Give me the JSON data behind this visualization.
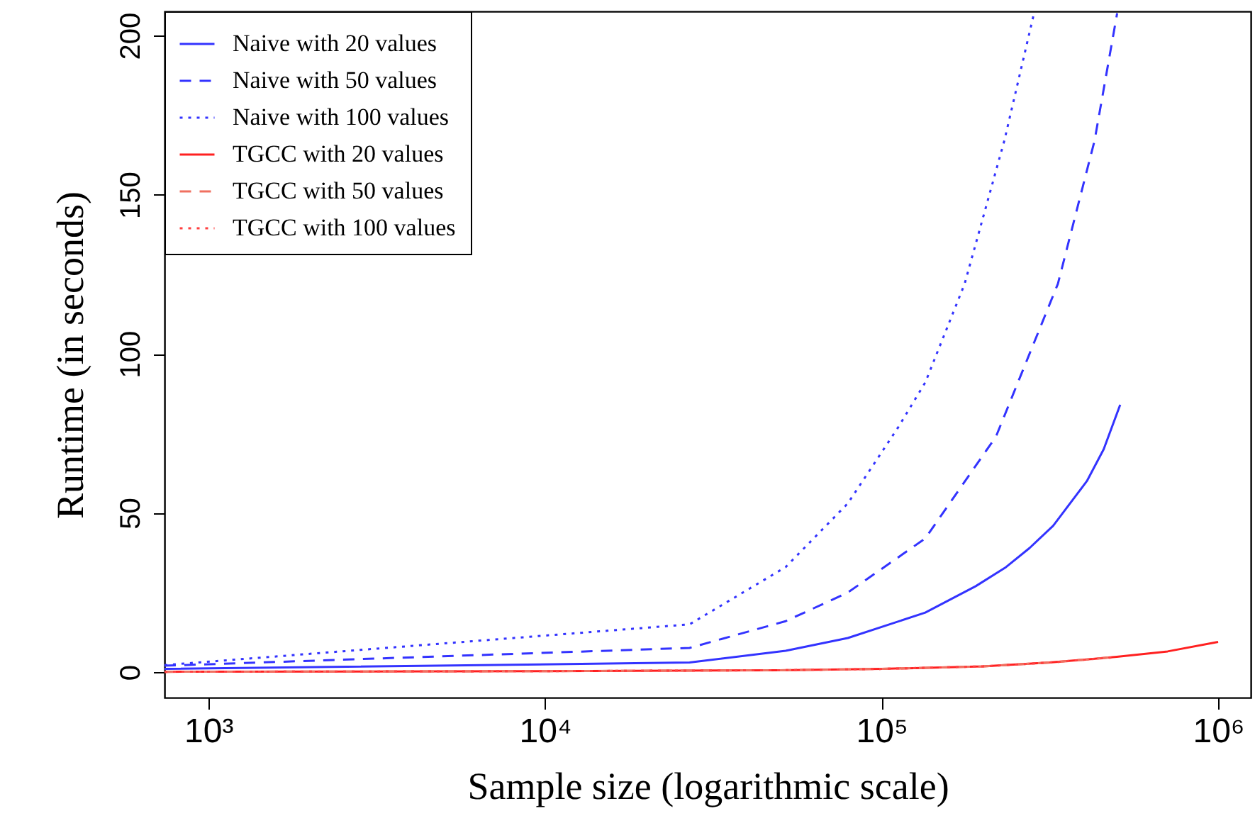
{
  "chart_data": {
    "type": "line",
    "xlabel": "Sample size (logarithmic scale)",
    "ylabel": "Runtime (in seconds)",
    "log": "x",
    "xlim": [
      741,
      1250000
    ],
    "ylim": [
      -8,
      207.6
    ],
    "xticks": [
      {
        "value": 1000,
        "label": "10³"
      },
      {
        "value": 10000,
        "label": "10⁴"
      },
      {
        "value": 100000,
        "label": "10⁵"
      },
      {
        "value": 1000000,
        "label": "10⁶"
      }
    ],
    "yticks": [
      0,
      50,
      100,
      150,
      200
    ],
    "grid": false,
    "legend": "top left",
    "marker": "none",
    "series": [
      {
        "name": "Naive with 20 values",
        "color": "#3333ff",
        "line_style": "solid",
        "x": [
          741,
          26900,
          51900,
          79400,
          134900,
          190500,
          234400,
          275400,
          323600,
          407400,
          457100,
          511700
        ],
        "values": [
          1,
          3,
          6.7,
          10.7,
          18.7,
          27,
          33,
          39,
          46,
          60,
          70,
          84
        ]
      },
      {
        "name": "Naive with 50 values",
        "color": "#3333ff",
        "line_style": "dashed",
        "x": [
          741,
          26900,
          51900,
          79400,
          134900,
          218800,
          334200,
          429500,
          501200
        ],
        "values": [
          2,
          7.6,
          16,
          25,
          42,
          74,
          122,
          167,
          207
        ]
      },
      {
        "name": "Naive with 100 values",
        "color": "#3333ff",
        "line_style": "dotted",
        "x": [
          741,
          26900,
          51900,
          79400,
          112200,
          134900,
          176600,
          231700,
          283800
        ],
        "values": [
          2.2,
          15,
          33,
          53,
          77,
          91,
          122,
          167,
          207
        ]
      },
      {
        "name": "TGCC with 20 values",
        "color": "#ff2020",
        "line_style": "solid",
        "x": [
          741,
          10000,
          50000,
          100000,
          200000,
          316000,
          500000,
          708000,
          1000000
        ],
        "values": [
          0.1,
          0.3,
          0.6,
          1,
          1.8,
          3,
          4.8,
          6.5,
          9.5
        ]
      },
      {
        "name": "TGCC with 50 values",
        "color": "#f07060",
        "line_style": "dashed",
        "x": [
          741,
          10000,
          50000,
          100000,
          200000,
          316000,
          500000
        ],
        "values": [
          0.1,
          0.3,
          0.6,
          1,
          1.8,
          3,
          4.8
        ]
      },
      {
        "name": "TGCC with 100 values",
        "color": "#ff4040",
        "line_style": "dotted",
        "x": [
          741,
          10000,
          50000,
          100000,
          200000,
          316000,
          500000
        ],
        "values": [
          0.1,
          0.3,
          0.6,
          1,
          1.8,
          3,
          4.7
        ]
      }
    ]
  }
}
